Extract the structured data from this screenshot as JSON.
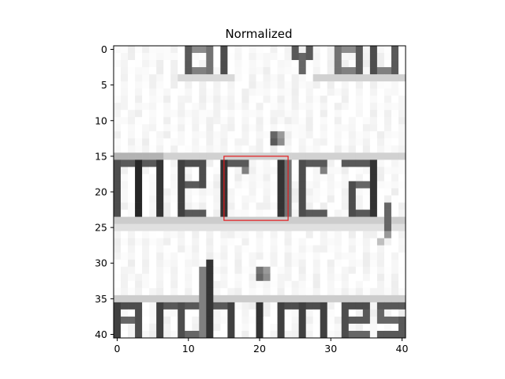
{
  "chart_data": {
    "type": "heatmap",
    "title": "Normalized",
    "xlabel": "",
    "ylabel": "",
    "xlim": [
      -0.5,
      40.5
    ],
    "ylim": [
      40.5,
      -0.5
    ],
    "x_ticks": [
      0,
      10,
      20,
      30,
      40
    ],
    "y_ticks": [
      0,
      5,
      10,
      15,
      20,
      25,
      30,
      35,
      40
    ],
    "colormap": "gray",
    "grid": false,
    "image_content": "Grayscale crop of printed text: partial line 'al y al' at top, 'merica,' across the middle, 'archimes' at bottom",
    "highlight_box": {
      "x_range": [
        15,
        24
      ],
      "y_range": [
        15,
        24
      ],
      "color": "#e41a1c"
    }
  }
}
